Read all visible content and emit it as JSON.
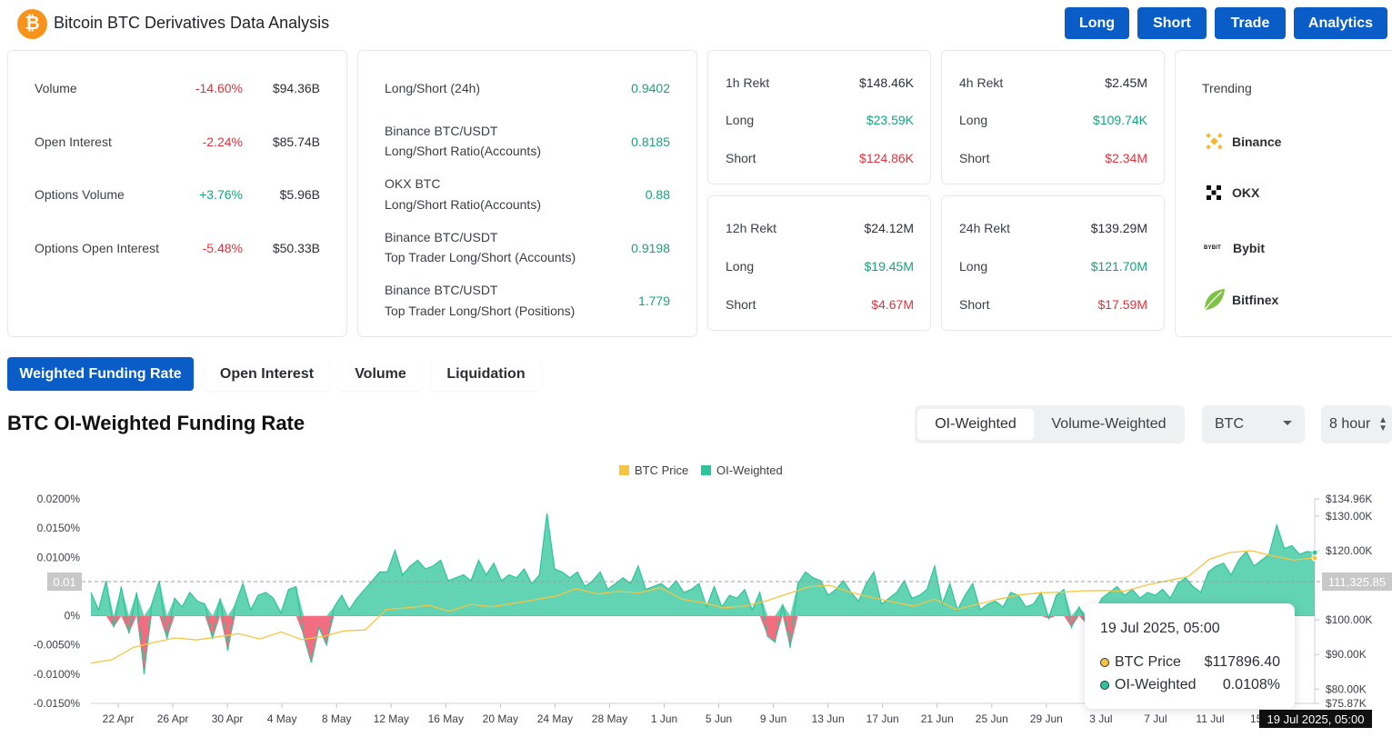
{
  "header": {
    "logo_glyph": "₿",
    "title": "Bitcoin BTC Derivatives Data Analysis",
    "buttons": [
      "Long",
      "Short",
      "Trade",
      "Analytics"
    ]
  },
  "market": {
    "rows": [
      {
        "label": "Volume",
        "change": "-14.60%",
        "value": "$94.36B"
      },
      {
        "label": "Open Interest",
        "change": "-2.24%",
        "value": "$85.74B"
      },
      {
        "label": "Options Volume",
        "change": "+3.76%",
        "value": "$5.96B"
      },
      {
        "label": "Options Open Interest",
        "change": "-5.48%",
        "value": "$50.33B"
      }
    ]
  },
  "ratios": {
    "rows": [
      {
        "line1": "Long/Short (24h)",
        "line2": "",
        "value": "0.9402"
      },
      {
        "line1": "Binance BTC/USDT",
        "line2": "Long/Short Ratio(Accounts)",
        "value": "0.8185"
      },
      {
        "line1": "OKX BTC",
        "line2": "Long/Short Ratio(Accounts)",
        "value": "0.88"
      },
      {
        "line1": "Binance BTC/USDT",
        "line2": "Top Trader Long/Short (Accounts)",
        "value": "0.9198"
      },
      {
        "line1": "Binance BTC/USDT",
        "line2": "Top Trader Long/Short (Positions)",
        "value": "1.779"
      }
    ]
  },
  "rekt": [
    {
      "label": "1h Rekt",
      "total": "$148.46K",
      "long_label": "Long",
      "long": "$23.59K",
      "short_label": "Short",
      "short": "$124.86K"
    },
    {
      "label": "4h Rekt",
      "total": "$2.45M",
      "long_label": "Long",
      "long": "$109.74K",
      "short_label": "Short",
      "short": "$2.34M"
    },
    {
      "label": "12h Rekt",
      "total": "$24.12M",
      "long_label": "Long",
      "long": "$19.45M",
      "short_label": "Short",
      "short": "$4.67M"
    },
    {
      "label": "24h Rekt",
      "total": "$139.29M",
      "long_label": "Long",
      "long": "$121.70M",
      "short_label": "Short",
      "short": "$17.59M"
    }
  ],
  "trending": {
    "title": "Trending",
    "items": [
      "Binance",
      "OKX",
      "Bybit",
      "Bitfinex"
    ],
    "bybit_logo_text": "BYBIT"
  },
  "tabs": [
    "Weighted Funding Rate",
    "Open Interest",
    "Volume",
    "Liquidation"
  ],
  "chart_header": {
    "title": "BTC OI-Weighted Funding Rate",
    "seg": [
      "OI-Weighted",
      "Volume-Weighted"
    ],
    "asset": "BTC",
    "interval": "8 hour"
  },
  "tooltip": {
    "date": "19 Jul 2025, 05:00",
    "rows": [
      {
        "name": "BTC Price",
        "value": "$117896.40"
      },
      {
        "name": "OI-Weighted",
        "value": "0.0108%"
      }
    ]
  },
  "colors": {
    "accent": "#0a5cc7",
    "price": "#f5c542",
    "oi_pos": "#2ec49a",
    "oi_neg": "#f1536a",
    "green_text": "#16a37f",
    "red_text": "#e3323e"
  },
  "chart_data": {
    "type": "area",
    "legend": [
      "BTC Price",
      "OI-Weighted"
    ],
    "x_ticks": [
      "22 Apr",
      "26 Apr",
      "30 Apr",
      "4 May",
      "8 May",
      "12 May",
      "16 May",
      "20 May",
      "24 May",
      "28 May",
      "1 Jun",
      "5 Jun",
      "9 Jun",
      "13 Jun",
      "17 Jun",
      "21 Jun",
      "25 Jun",
      "29 Jun",
      "3 Jul",
      "7 Jul",
      "11 Jul",
      "15 Jul"
    ],
    "y_left_ticks": [
      "0.0200%",
      "0.0150%",
      "0.0100%",
      "0.01",
      "0%",
      "-0.0050%",
      "-0.0100%",
      "-0.0150%"
    ],
    "y_left_values": [
      0.02,
      0.015,
      0.01,
      0.006,
      0,
      -0.005,
      -0.01,
      -0.015
    ],
    "y_left_range": [
      -0.015,
      0.02
    ],
    "y_right_ticks": [
      "$134.96K",
      "$130.00K",
      "$120.00K",
      "$100.00K",
      "$90.00K",
      "$80.00K",
      "$75.87K"
    ],
    "y_right_values": [
      134960,
      130000,
      120000,
      100000,
      90000,
      80000,
      75870
    ],
    "y_right_range": [
      75870,
      134960
    ],
    "crosshair": {
      "left_label": "0.01",
      "right_label": "111,325.85",
      "x_label": "19 Jul 2025, 05:00"
    },
    "series": [
      {
        "name": "OI-Weighted",
        "values": [
          0.004,
          0.001,
          0.006,
          -0.002,
          0.005,
          -0.003,
          0.004,
          -0.01,
          0.002,
          0.006,
          -0.004,
          0.003,
          0.0015,
          0.004,
          0.0025,
          0.002,
          -0.004,
          0.003,
          -0.006,
          0.002,
          0.0055,
          0.001,
          0.0035,
          0.004,
          0.003,
          0.0005,
          0.0045,
          0.005,
          -0.0035,
          -0.008,
          -0.002,
          -0.005,
          0.0015,
          0.0035,
          0.001,
          0.003,
          0.0045,
          0.006,
          0.0075,
          0.0075,
          0.0112,
          0.007,
          0.0085,
          0.0095,
          0.008,
          0.0085,
          0.0095,
          0.006,
          0.0065,
          0.007,
          0.006,
          0.0095,
          0.007,
          0.009,
          0.006,
          0.007,
          0.0065,
          0.008,
          0.0055,
          0.007,
          0.0175,
          0.008,
          0.0075,
          0.0065,
          0.0075,
          0.005,
          0.006,
          0.0075,
          0.0045,
          0.0055,
          0.0065,
          0.0055,
          0.0085,
          0.0045,
          0.005,
          0.0055,
          0.0045,
          0.006,
          0.004,
          0.0045,
          0.0055,
          0.0015,
          0.005,
          0.0015,
          0.0035,
          0.003,
          0.0045,
          0.001,
          0.004,
          -0.0035,
          -0.0045,
          0.002,
          -0.0055,
          0.0055,
          0.0075,
          0.0065,
          0.006,
          0.0035,
          0.0045,
          0.006,
          0.004,
          0.0025,
          0.0055,
          0.0075,
          0.002,
          0.003,
          0.004,
          0.006,
          0.003,
          0.0035,
          0.0045,
          0.0085,
          0.002,
          0.0055,
          0.001,
          0.0035,
          0.0055,
          0.001,
          0.002,
          0.0025,
          0.0015,
          0.004,
          0.0035,
          0.0015,
          0.002,
          0.004,
          -0.0005,
          0.0035,
          0.0045,
          -0.002,
          0.0015,
          -0.0015,
          0.0005,
          0.003,
          0.004,
          0.005,
          0.0035,
          0.0045,
          0.003,
          0.004,
          0.0035,
          0.0045,
          0.003,
          0.0055,
          0.0065,
          0.005,
          0.004,
          0.0075,
          0.0085,
          0.009,
          0.007,
          0.0095,
          0.011,
          0.0085,
          0.0095,
          0.0105,
          0.0155,
          0.0115,
          0.012,
          0.0105,
          0.011,
          0.0108
        ]
      },
      {
        "name": "BTC Price",
        "values": [
          87500,
          88500,
          92000,
          93500,
          94800,
          94200,
          95100,
          96000,
          94500,
          96500,
          94300,
          95200,
          96800,
          97100,
          103000,
          103500,
          104200,
          102500,
          104500,
          103800,
          104700,
          105800,
          106800,
          109000,
          107500,
          108200,
          107800,
          109300,
          106000,
          105000,
          103500,
          104000,
          105500,
          107500,
          109500,
          110000,
          108000,
          106500,
          105200,
          104000,
          106000,
          103000,
          104500,
          106000,
          107200,
          107800,
          108000,
          108400,
          108500,
          108300,
          110000,
          111300,
          112500,
          117500,
          119500,
          120000,
          118500,
          117300,
          117896
        ]
      }
    ]
  }
}
